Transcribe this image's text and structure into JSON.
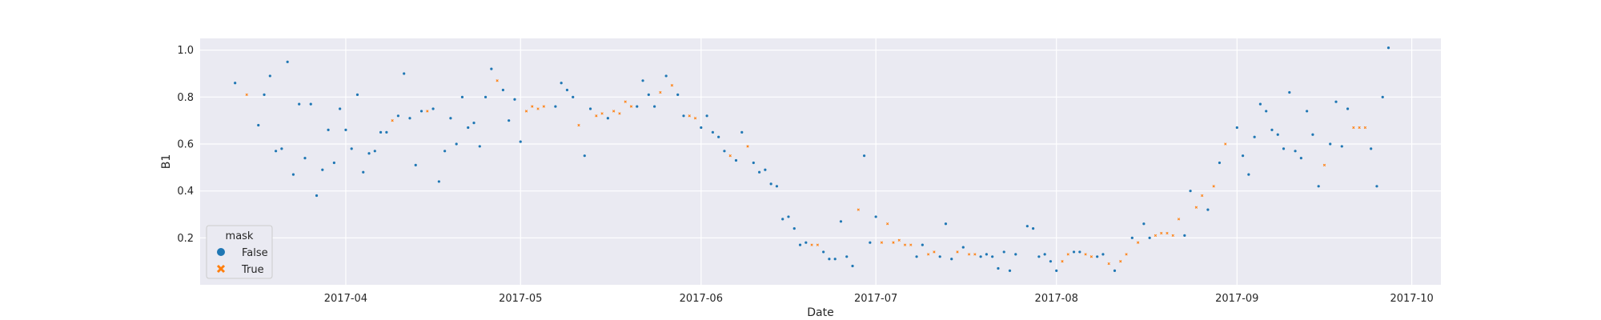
{
  "chart_data": {
    "type": "scatter",
    "xlabel": "Date",
    "ylabel": "B1",
    "xlim": [
      "2017-03-07",
      "2017-10-06"
    ],
    "ylim": [
      0.0,
      1.05
    ],
    "xticks": [
      "2017-04-01",
      "2017-05-01",
      "2017-06-01",
      "2017-07-01",
      "2017-08-01",
      "2017-09-01",
      "2017-10-01"
    ],
    "xtick_labels": [
      "2017-04",
      "2017-05",
      "2017-06",
      "2017-07",
      "2017-08",
      "2017-09",
      "2017-10"
    ],
    "yticks": [
      0.2,
      0.4,
      0.6,
      0.8,
      1.0
    ],
    "ytick_labels": [
      "0.2",
      "0.4",
      "0.6",
      "0.8",
      "1.0"
    ],
    "grid": true,
    "legend": {
      "title": "mask",
      "position": "lower-left",
      "entries": [
        {
          "label": "False",
          "marker": "circle",
          "color": "#1f77b4"
        },
        {
          "label": "True",
          "marker": "x",
          "color": "#ff7f0e"
        }
      ]
    },
    "series": [
      {
        "name": "False",
        "color": "#1f77b4",
        "points": [
          [
            "2017-03-13",
            0.86
          ],
          [
            "2017-03-17",
            0.68
          ],
          [
            "2017-03-18",
            0.81
          ],
          [
            "2017-03-19",
            0.89
          ],
          [
            "2017-03-20",
            0.57
          ],
          [
            "2017-03-21",
            0.58
          ],
          [
            "2017-03-22",
            0.95
          ],
          [
            "2017-03-23",
            0.47
          ],
          [
            "2017-03-24",
            0.77
          ],
          [
            "2017-03-25",
            0.54
          ],
          [
            "2017-03-26",
            0.77
          ],
          [
            "2017-03-27",
            0.38
          ],
          [
            "2017-03-28",
            0.49
          ],
          [
            "2017-03-29",
            0.66
          ],
          [
            "2017-03-30",
            0.52
          ],
          [
            "2017-03-31",
            0.75
          ],
          [
            "2017-04-01",
            0.66
          ],
          [
            "2017-04-02",
            0.58
          ],
          [
            "2017-04-03",
            0.81
          ],
          [
            "2017-04-04",
            0.48
          ],
          [
            "2017-04-05",
            0.56
          ],
          [
            "2017-04-06",
            0.57
          ],
          [
            "2017-04-07",
            0.65
          ],
          [
            "2017-04-08",
            0.65
          ],
          [
            "2017-04-10",
            0.72
          ],
          [
            "2017-04-11",
            0.9
          ],
          [
            "2017-04-12",
            0.71
          ],
          [
            "2017-04-13",
            0.51
          ],
          [
            "2017-04-14",
            0.74
          ],
          [
            "2017-04-16",
            0.75
          ],
          [
            "2017-04-17",
            0.44
          ],
          [
            "2017-04-18",
            0.57
          ],
          [
            "2017-04-19",
            0.71
          ],
          [
            "2017-04-20",
            0.6
          ],
          [
            "2017-04-21",
            0.8
          ],
          [
            "2017-04-22",
            0.67
          ],
          [
            "2017-04-23",
            0.69
          ],
          [
            "2017-04-24",
            0.59
          ],
          [
            "2017-04-25",
            0.8
          ],
          [
            "2017-04-26",
            0.92
          ],
          [
            "2017-04-28",
            0.83
          ],
          [
            "2017-04-29",
            0.7
          ],
          [
            "2017-04-30",
            0.79
          ],
          [
            "2017-05-01",
            0.61
          ],
          [
            "2017-05-07",
            0.76
          ],
          [
            "2017-05-08",
            0.86
          ],
          [
            "2017-05-09",
            0.83
          ],
          [
            "2017-05-10",
            0.8
          ],
          [
            "2017-05-12",
            0.55
          ],
          [
            "2017-05-13",
            0.75
          ],
          [
            "2017-05-16",
            0.71
          ],
          [
            "2017-05-21",
            0.76
          ],
          [
            "2017-05-22",
            0.87
          ],
          [
            "2017-05-23",
            0.81
          ],
          [
            "2017-05-24",
            0.76
          ],
          [
            "2017-05-26",
            0.89
          ],
          [
            "2017-05-28",
            0.81
          ],
          [
            "2017-05-29",
            0.72
          ],
          [
            "2017-06-01",
            0.67
          ],
          [
            "2017-06-02",
            0.72
          ],
          [
            "2017-06-03",
            0.65
          ],
          [
            "2017-06-04",
            0.63
          ],
          [
            "2017-06-05",
            0.57
          ],
          [
            "2017-06-07",
            0.53
          ],
          [
            "2017-06-08",
            0.65
          ],
          [
            "2017-06-10",
            0.52
          ],
          [
            "2017-06-11",
            0.48
          ],
          [
            "2017-06-12",
            0.49
          ],
          [
            "2017-06-13",
            0.43
          ],
          [
            "2017-06-14",
            0.42
          ],
          [
            "2017-06-15",
            0.28
          ],
          [
            "2017-06-16",
            0.29
          ],
          [
            "2017-06-17",
            0.24
          ],
          [
            "2017-06-18",
            0.17
          ],
          [
            "2017-06-19",
            0.18
          ],
          [
            "2017-06-22",
            0.14
          ],
          [
            "2017-06-23",
            0.11
          ],
          [
            "2017-06-24",
            0.11
          ],
          [
            "2017-06-25",
            0.27
          ],
          [
            "2017-06-26",
            0.12
          ],
          [
            "2017-06-27",
            0.08
          ],
          [
            "2017-06-29",
            0.55
          ],
          [
            "2017-06-30",
            0.18
          ],
          [
            "2017-07-01",
            0.29
          ],
          [
            "2017-07-08",
            0.12
          ],
          [
            "2017-07-09",
            0.17
          ],
          [
            "2017-07-12",
            0.12
          ],
          [
            "2017-07-13",
            0.26
          ],
          [
            "2017-07-14",
            0.11
          ],
          [
            "2017-07-16",
            0.16
          ],
          [
            "2017-07-19",
            0.12
          ],
          [
            "2017-07-20",
            0.13
          ],
          [
            "2017-07-21",
            0.12
          ],
          [
            "2017-07-22",
            0.07
          ],
          [
            "2017-07-23",
            0.14
          ],
          [
            "2017-07-24",
            0.06
          ],
          [
            "2017-07-25",
            0.13
          ],
          [
            "2017-07-27",
            0.25
          ],
          [
            "2017-07-28",
            0.24
          ],
          [
            "2017-07-29",
            0.12
          ],
          [
            "2017-07-30",
            0.13
          ],
          [
            "2017-07-31",
            0.1
          ],
          [
            "2017-08-01",
            0.06
          ],
          [
            "2017-08-04",
            0.14
          ],
          [
            "2017-08-05",
            0.14
          ],
          [
            "2017-08-08",
            0.12
          ],
          [
            "2017-08-09",
            0.13
          ],
          [
            "2017-08-11",
            0.06
          ],
          [
            "2017-08-14",
            0.2
          ],
          [
            "2017-08-16",
            0.26
          ],
          [
            "2017-08-17",
            0.2
          ],
          [
            "2017-08-23",
            0.21
          ],
          [
            "2017-08-24",
            0.4
          ],
          [
            "2017-08-27",
            0.32
          ],
          [
            "2017-08-29",
            0.52
          ],
          [
            "2017-09-01",
            0.67
          ],
          [
            "2017-09-02",
            0.55
          ],
          [
            "2017-09-03",
            0.47
          ],
          [
            "2017-09-04",
            0.63
          ],
          [
            "2017-09-05",
            0.77
          ],
          [
            "2017-09-06",
            0.74
          ],
          [
            "2017-09-07",
            0.66
          ],
          [
            "2017-09-08",
            0.64
          ],
          [
            "2017-09-09",
            0.58
          ],
          [
            "2017-09-10",
            0.82
          ],
          [
            "2017-09-11",
            0.57
          ],
          [
            "2017-09-12",
            0.54
          ],
          [
            "2017-09-13",
            0.74
          ],
          [
            "2017-09-14",
            0.64
          ],
          [
            "2017-09-15",
            0.42
          ],
          [
            "2017-09-17",
            0.6
          ],
          [
            "2017-09-18",
            0.78
          ],
          [
            "2017-09-19",
            0.59
          ],
          [
            "2017-09-20",
            0.75
          ],
          [
            "2017-09-24",
            0.58
          ],
          [
            "2017-09-25",
            0.42
          ],
          [
            "2017-09-26",
            0.8
          ],
          [
            "2017-09-27",
            1.01
          ]
        ]
      },
      {
        "name": "True",
        "color": "#ff7f0e",
        "points": [
          [
            "2017-03-15",
            0.81
          ],
          [
            "2017-04-09",
            0.7
          ],
          [
            "2017-04-15",
            0.74
          ],
          [
            "2017-04-27",
            0.87
          ],
          [
            "2017-05-02",
            0.74
          ],
          [
            "2017-05-03",
            0.76
          ],
          [
            "2017-05-04",
            0.75
          ],
          [
            "2017-05-05",
            0.76
          ],
          [
            "2017-05-11",
            0.68
          ],
          [
            "2017-05-14",
            0.72
          ],
          [
            "2017-05-15",
            0.73
          ],
          [
            "2017-05-17",
            0.74
          ],
          [
            "2017-05-18",
            0.73
          ],
          [
            "2017-05-19",
            0.78
          ],
          [
            "2017-05-20",
            0.76
          ],
          [
            "2017-05-25",
            0.82
          ],
          [
            "2017-05-27",
            0.85
          ],
          [
            "2017-05-30",
            0.72
          ],
          [
            "2017-05-31",
            0.71
          ],
          [
            "2017-06-06",
            0.55
          ],
          [
            "2017-06-09",
            0.59
          ],
          [
            "2017-06-20",
            0.17
          ],
          [
            "2017-06-21",
            0.17
          ],
          [
            "2017-06-28",
            0.32
          ],
          [
            "2017-07-02",
            0.18
          ],
          [
            "2017-07-03",
            0.26
          ],
          [
            "2017-07-04",
            0.18
          ],
          [
            "2017-07-05",
            0.19
          ],
          [
            "2017-07-06",
            0.17
          ],
          [
            "2017-07-07",
            0.17
          ],
          [
            "2017-07-10",
            0.13
          ],
          [
            "2017-07-11",
            0.14
          ],
          [
            "2017-07-15",
            0.14
          ],
          [
            "2017-07-17",
            0.13
          ],
          [
            "2017-07-18",
            0.13
          ],
          [
            "2017-08-02",
            0.1
          ],
          [
            "2017-08-03",
            0.13
          ],
          [
            "2017-08-06",
            0.13
          ],
          [
            "2017-08-07",
            0.12
          ],
          [
            "2017-08-10",
            0.09
          ],
          [
            "2017-08-12",
            0.1
          ],
          [
            "2017-08-13",
            0.13
          ],
          [
            "2017-08-15",
            0.18
          ],
          [
            "2017-08-18",
            0.21
          ],
          [
            "2017-08-19",
            0.22
          ],
          [
            "2017-08-20",
            0.22
          ],
          [
            "2017-08-21",
            0.21
          ],
          [
            "2017-08-22",
            0.28
          ],
          [
            "2017-08-25",
            0.33
          ],
          [
            "2017-08-26",
            0.38
          ],
          [
            "2017-08-28",
            0.42
          ],
          [
            "2017-08-30",
            0.6
          ],
          [
            "2017-09-16",
            0.51
          ],
          [
            "2017-09-21",
            0.67
          ],
          [
            "2017-09-22",
            0.67
          ],
          [
            "2017-09-23",
            0.67
          ]
        ]
      }
    ]
  }
}
